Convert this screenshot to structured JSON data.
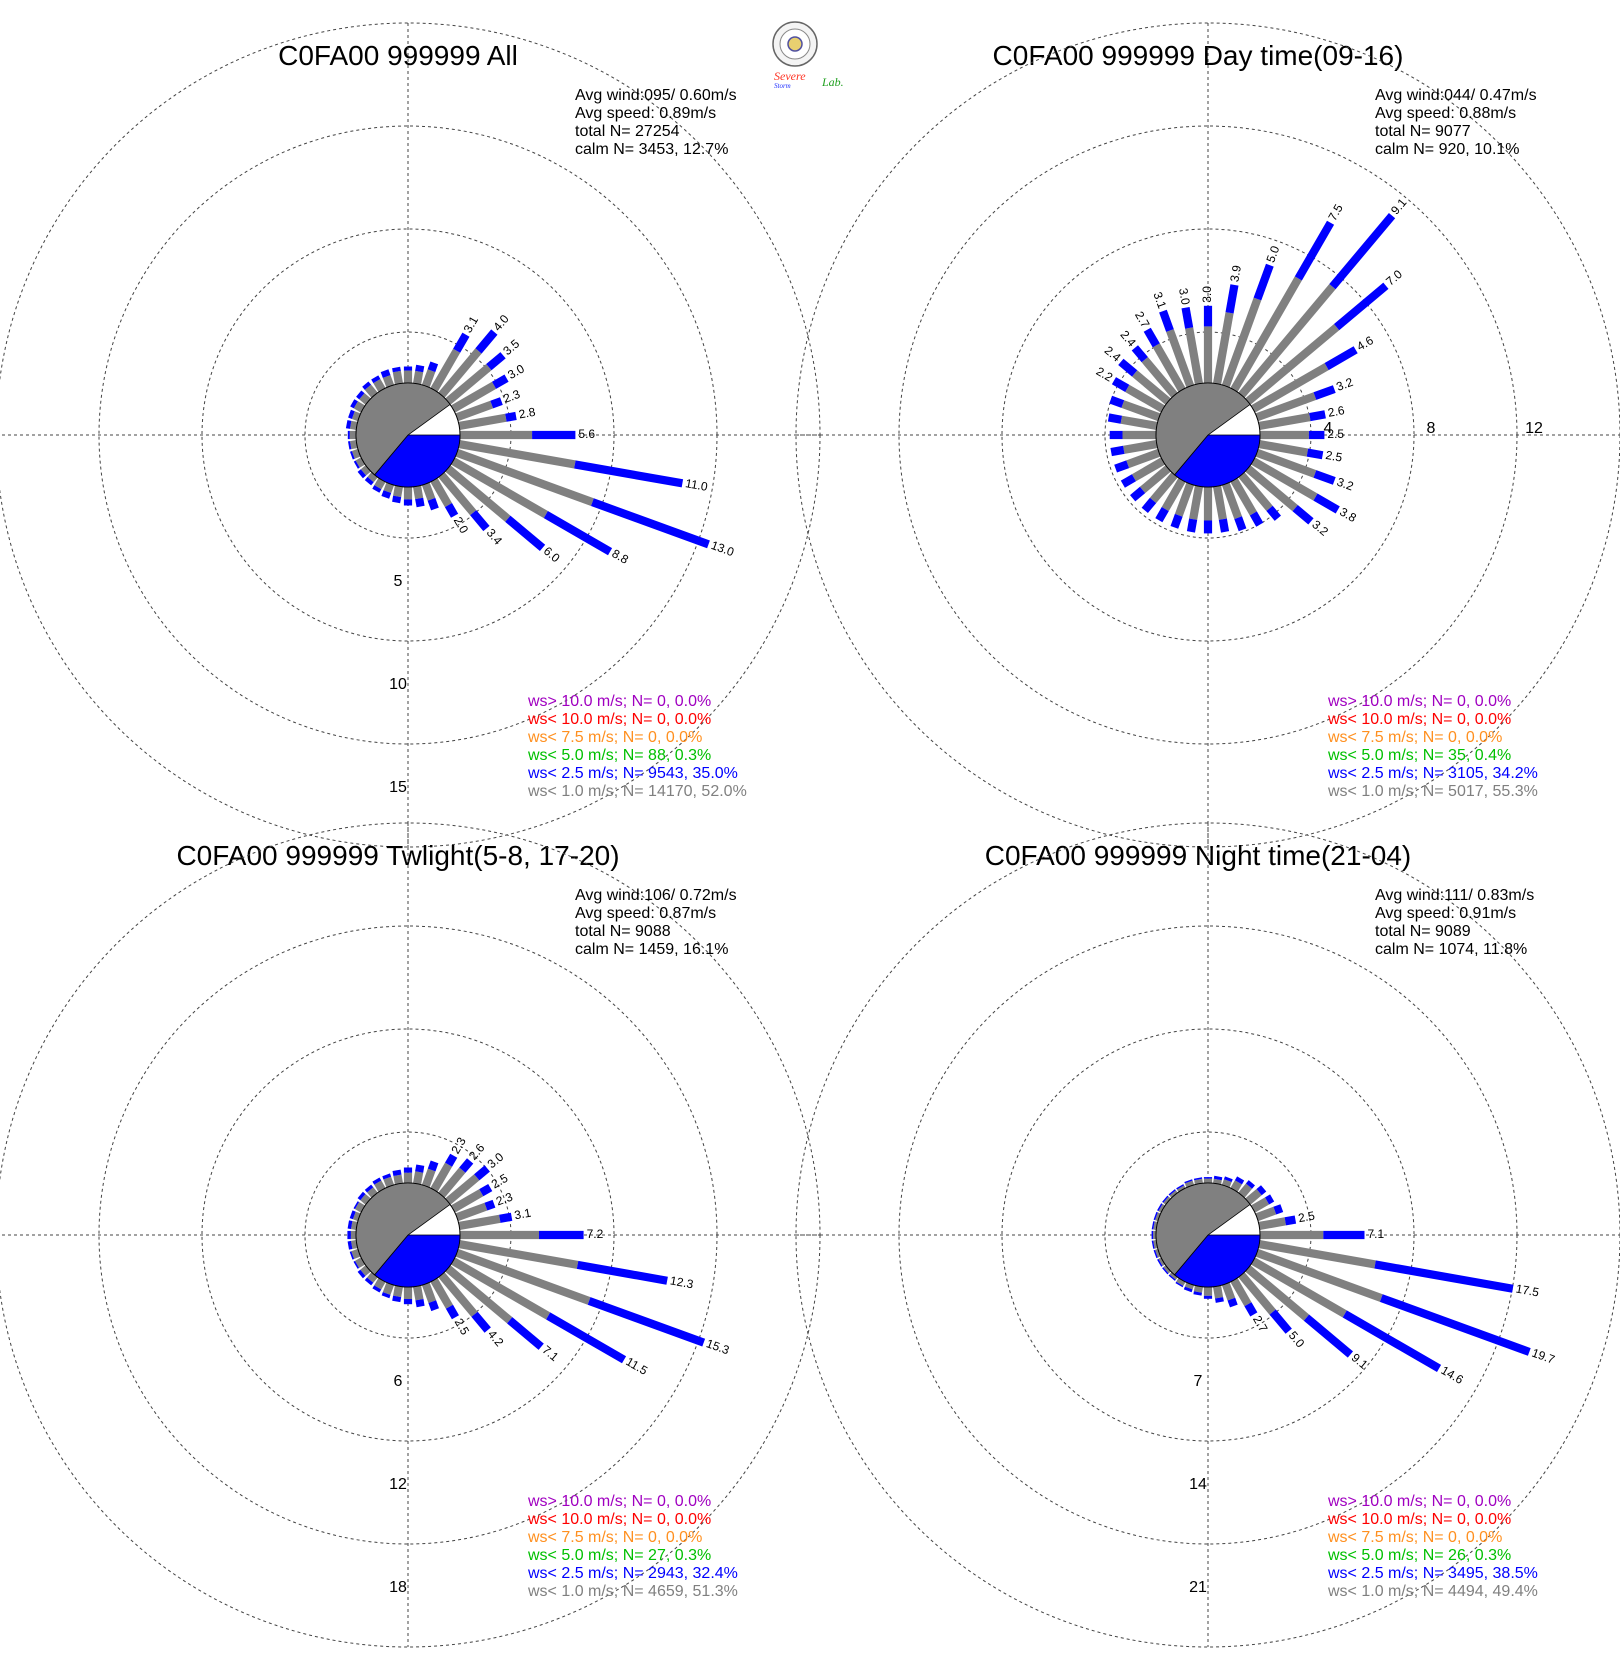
{
  "logo": {
    "line1": "Severe",
    "line2": "Storm",
    "line3": "Lab."
  },
  "colors": {
    "calm": "#808080",
    "lt1": "#808080",
    "lt2_5": "#0000ff",
    "lt5": "#00c000",
    "lt7_5": "#ff9020",
    "lt10": "#ff0000",
    "gt10": "#a000c0"
  },
  "chart_data": [
    {
      "type": "wind-rose",
      "title": "C0FA00 999999 All",
      "stats": {
        "avg_wind": "Avg wind:095/ 0.60m/s",
        "avg_speed": "Avg speed: 0.89m/s",
        "total": "total N=       27254",
        "calm": "calm N=   3453,  12.7%"
      },
      "ring_labels": [
        "5",
        "10",
        "15"
      ],
      "ring_step": 5,
      "petals": [
        {
          "dir": 0,
          "total": 0.8,
          "lt1": 0.6
        },
        {
          "dir": 10,
          "total": 0.9,
          "lt1": 0.6
        },
        {
          "dir": 20,
          "total": 1.2,
          "lt1": 0.8
        },
        {
          "dir": 30,
          "total": 3.1,
          "lt1": 2.2,
          "label": "3.1"
        },
        {
          "dir": 40,
          "total": 4.0,
          "lt1": 2.8,
          "label": "4.0"
        },
        {
          "dir": 50,
          "total": 3.5,
          "lt1": 2.6,
          "label": "3.5"
        },
        {
          "dir": 60,
          "total": 3.0,
          "lt1": 2.3,
          "label": "3.0"
        },
        {
          "dir": 70,
          "total": 2.3,
          "lt1": 1.8,
          "label": "2.3"
        },
        {
          "dir": 80,
          "total": 2.8,
          "lt1": 2.3,
          "label": "2.8"
        },
        {
          "dir": 90,
          "total": 5.6,
          "lt1": 3.5,
          "label": "5.6"
        },
        {
          "dir": 100,
          "total": 11.0,
          "lt1": 5.7,
          "label": "11.0"
        },
        {
          "dir": 110,
          "total": 13.0,
          "lt1": 7.0,
          "label": "13.0"
        },
        {
          "dir": 120,
          "total": 8.8,
          "lt1": 5.2,
          "label": "8.8"
        },
        {
          "dir": 130,
          "total": 6.0,
          "lt1": 3.8,
          "label": "6.0"
        },
        {
          "dir": 140,
          "total": 3.4,
          "lt1": 2.4,
          "label": "3.4"
        },
        {
          "dir": 150,
          "total": 2.0,
          "lt1": 1.4,
          "label": "2.0"
        },
        {
          "dir": 160,
          "total": 1.3,
          "lt1": 0.8
        },
        {
          "dir": 170,
          "total": 1.0,
          "lt1": 0.6
        },
        {
          "dir": 180,
          "total": 0.9,
          "lt1": 0.6
        },
        {
          "dir": 190,
          "total": 0.8,
          "lt1": 0.5
        },
        {
          "dir": 200,
          "total": 0.7,
          "lt1": 0.4
        },
        {
          "dir": 210,
          "total": 0.6,
          "lt1": 0.4
        },
        {
          "dir": 220,
          "total": 0.5,
          "lt1": 0.3
        },
        {
          "dir": 230,
          "total": 0.5,
          "lt1": 0.3
        },
        {
          "dir": 240,
          "total": 0.4,
          "lt1": 0.3
        },
        {
          "dir": 250,
          "total": 0.4,
          "lt1": 0.3
        },
        {
          "dir": 260,
          "total": 0.4,
          "lt1": 0.3
        },
        {
          "dir": 270,
          "total": 0.4,
          "lt1": 0.3
        },
        {
          "dir": 280,
          "total": 0.5,
          "lt1": 0.3
        },
        {
          "dir": 290,
          "total": 0.5,
          "lt1": 0.3
        },
        {
          "dir": 300,
          "total": 0.6,
          "lt1": 0.4
        },
        {
          "dir": 310,
          "total": 0.6,
          "lt1": 0.4
        },
        {
          "dir": 320,
          "total": 0.7,
          "lt1": 0.5
        },
        {
          "dir": 330,
          "total": 0.7,
          "lt1": 0.5
        },
        {
          "dir": 340,
          "total": 0.8,
          "lt1": 0.5
        },
        {
          "dir": 350,
          "total": 0.8,
          "lt1": 0.6
        }
      ],
      "legend": [
        {
          "text": "ws> 10.0 m/s; N=     0,  0.0%",
          "color": "#a000c0"
        },
        {
          "text": "ws< 10.0 m/s; N=     0,  0.0%",
          "color": "#ff0000"
        },
        {
          "text": "ws<  7.5 m/s; N=     0,  0.0%",
          "color": "#ff9020"
        },
        {
          "text": "ws<  5.0 m/s; N=    88,  0.3%",
          "color": "#00c000"
        },
        {
          "text": "ws<  2.5 m/s; N=  9543, 35.0%",
          "color": "#0000ff"
        },
        {
          "text": "ws<  1.0 m/s; N= 14170, 52.0%",
          "color": "#808080"
        }
      ]
    },
    {
      "type": "wind-rose",
      "title": "C0FA00 999999 Day time(09-16)",
      "stats": {
        "avg_wind": "Avg wind:044/ 0.47m/s",
        "avg_speed": "Avg speed: 0.88m/s",
        "total": "total N=        9077",
        "calm": "calm N=    920,  10.1%"
      },
      "ring_labels": [
        "4",
        "8",
        "12"
      ],
      "ring_step": 4,
      "petals": [
        {
          "dir": 0,
          "total": 3.0,
          "lt1": 2.2,
          "label": "3.0"
        },
        {
          "dir": 10,
          "total": 3.9,
          "lt1": 2.8,
          "label": "3.9"
        },
        {
          "dir": 20,
          "total": 5.0,
          "lt1": 3.6,
          "label": "5.0"
        },
        {
          "dir": 30,
          "total": 7.5,
          "lt1": 5.0,
          "label": "7.5"
        },
        {
          "dir": 40,
          "total": 9.1,
          "lt1": 5.5,
          "label": "9.1"
        },
        {
          "dir": 50,
          "total": 7.0,
          "lt1": 4.5,
          "label": "7.0"
        },
        {
          "dir": 60,
          "total": 4.6,
          "lt1": 3.3,
          "label": "4.6"
        },
        {
          "dir": 70,
          "total": 3.2,
          "lt1": 2.4,
          "label": "3.2"
        },
        {
          "dir": 80,
          "total": 2.6,
          "lt1": 2.0,
          "label": "2.6"
        },
        {
          "dir": 90,
          "total": 2.5,
          "lt1": 1.9,
          "label": "2.5"
        },
        {
          "dir": 100,
          "total": 2.5,
          "lt1": 1.9,
          "label": "2.5"
        },
        {
          "dir": 110,
          "total": 3.2,
          "lt1": 2.4,
          "label": "3.2"
        },
        {
          "dir": 120,
          "total": 3.8,
          "lt1": 2.8,
          "label": "3.8"
        },
        {
          "dir": 130,
          "total": 3.2,
          "lt1": 2.4,
          "label": "3.2"
        },
        {
          "dir": 140,
          "total": 2.2,
          "lt1": 1.7
        },
        {
          "dir": 150,
          "total": 2.0,
          "lt1": 1.5
        },
        {
          "dir": 160,
          "total": 1.9,
          "lt1": 1.4
        },
        {
          "dir": 170,
          "total": 1.8,
          "lt1": 1.3
        },
        {
          "dir": 180,
          "total": 1.8,
          "lt1": 1.3
        },
        {
          "dir": 190,
          "total": 1.8,
          "lt1": 1.3
        },
        {
          "dir": 200,
          "total": 1.8,
          "lt1": 1.3
        },
        {
          "dir": 210,
          "total": 1.8,
          "lt1": 1.3
        },
        {
          "dir": 220,
          "total": 1.8,
          "lt1": 1.3
        },
        {
          "dir": 230,
          "total": 1.8,
          "lt1": 1.3
        },
        {
          "dir": 240,
          "total": 1.8,
          "lt1": 1.3
        },
        {
          "dir": 250,
          "total": 1.8,
          "lt1": 1.3
        },
        {
          "dir": 260,
          "total": 1.8,
          "lt1": 1.3
        },
        {
          "dir": 270,
          "total": 1.8,
          "lt1": 1.3
        },
        {
          "dir": 280,
          "total": 1.9,
          "lt1": 1.4
        },
        {
          "dir": 290,
          "total": 2.0,
          "lt1": 1.5
        },
        {
          "dir": 300,
          "total": 2.2,
          "lt1": 1.6,
          "label": "2.2"
        },
        {
          "dir": 310,
          "total": 2.4,
          "lt1": 1.7,
          "label": "2.4"
        },
        {
          "dir": 320,
          "total": 2.4,
          "lt1": 1.8,
          "label": "2.4"
        },
        {
          "dir": 330,
          "total": 2.7,
          "lt1": 2.0,
          "label": "2.7"
        },
        {
          "dir": 340,
          "total": 3.1,
          "lt1": 2.3,
          "label": "3.1"
        },
        {
          "dir": 350,
          "total": 3.0,
          "lt1": 2.2,
          "label": "3.0"
        }
      ],
      "legend": [
        {
          "text": "ws> 10.0 m/s; N=     0,  0.0%",
          "color": "#a000c0"
        },
        {
          "text": "ws< 10.0 m/s; N=     0,  0.0%",
          "color": "#ff0000"
        },
        {
          "text": "ws<  7.5 m/s; N=     0,  0.0%",
          "color": "#ff9020"
        },
        {
          "text": "ws<  5.0 m/s; N=    35,  0.4%",
          "color": "#00c000"
        },
        {
          "text": "ws<  2.5 m/s; N=  3105, 34.2%",
          "color": "#0000ff"
        },
        {
          "text": "ws<  1.0 m/s; N=  5017, 55.3%",
          "color": "#808080"
        }
      ]
    },
    {
      "type": "wind-rose",
      "title": "C0FA00 999999 Twlight(5-8, 17-20)",
      "stats": {
        "avg_wind": "Avg wind:106/ 0.72m/s",
        "avg_speed": "Avg speed: 0.87m/s",
        "total": "total N=        9088",
        "calm": "calm N=   1459,  16.1%"
      },
      "ring_labels": [
        "6",
        "12",
        "18"
      ],
      "ring_step": 6,
      "petals": [
        {
          "dir": 0,
          "total": 0.9,
          "lt1": 0.6
        },
        {
          "dir": 10,
          "total": 1.1,
          "lt1": 0.7
        },
        {
          "dir": 20,
          "total": 1.5,
          "lt1": 1.0
        },
        {
          "dir": 30,
          "total": 2.3,
          "lt1": 1.7,
          "label": "2.3"
        },
        {
          "dir": 40,
          "total": 2.6,
          "lt1": 1.9,
          "label": "2.6"
        },
        {
          "dir": 50,
          "total": 3.0,
          "lt1": 2.2,
          "label": "3.0"
        },
        {
          "dir": 60,
          "total": 2.5,
          "lt1": 1.9,
          "label": "2.5"
        },
        {
          "dir": 70,
          "total": 2.3,
          "lt1": 1.8,
          "label": "2.3"
        },
        {
          "dir": 80,
          "total": 3.1,
          "lt1": 2.4,
          "label": "3.1"
        },
        {
          "dir": 90,
          "total": 7.2,
          "lt1": 4.6,
          "label": "7.2"
        },
        {
          "dir": 100,
          "total": 12.3,
          "lt1": 7.0,
          "label": "12.3"
        },
        {
          "dir": 110,
          "total": 15.3,
          "lt1": 8.2,
          "label": "15.3"
        },
        {
          "dir": 120,
          "total": 11.5,
          "lt1": 6.4,
          "label": "11.5"
        },
        {
          "dir": 130,
          "total": 7.1,
          "lt1": 4.7,
          "label": "7.1"
        },
        {
          "dir": 140,
          "total": 4.2,
          "lt1": 3.0,
          "label": "4.2"
        },
        {
          "dir": 150,
          "total": 2.5,
          "lt1": 1.8,
          "label": "2.5"
        },
        {
          "dir": 160,
          "total": 1.6,
          "lt1": 1.1
        },
        {
          "dir": 170,
          "total": 1.2,
          "lt1": 0.8
        },
        {
          "dir": 180,
          "total": 1.0,
          "lt1": 0.7
        },
        {
          "dir": 190,
          "total": 0.9,
          "lt1": 0.6
        },
        {
          "dir": 200,
          "total": 0.8,
          "lt1": 0.6
        },
        {
          "dir": 210,
          "total": 0.7,
          "lt1": 0.5
        },
        {
          "dir": 220,
          "total": 0.6,
          "lt1": 0.4
        },
        {
          "dir": 230,
          "total": 0.6,
          "lt1": 0.4
        },
        {
          "dir": 240,
          "total": 0.5,
          "lt1": 0.4
        },
        {
          "dir": 250,
          "total": 0.5,
          "lt1": 0.4
        },
        {
          "dir": 260,
          "total": 0.5,
          "lt1": 0.3
        },
        {
          "dir": 270,
          "total": 0.5,
          "lt1": 0.3
        },
        {
          "dir": 280,
          "total": 0.5,
          "lt1": 0.3
        },
        {
          "dir": 290,
          "total": 0.5,
          "lt1": 0.3
        },
        {
          "dir": 300,
          "total": 0.5,
          "lt1": 0.4
        },
        {
          "dir": 310,
          "total": 0.6,
          "lt1": 0.4
        },
        {
          "dir": 320,
          "total": 0.6,
          "lt1": 0.4
        },
        {
          "dir": 330,
          "total": 0.7,
          "lt1": 0.5
        },
        {
          "dir": 340,
          "total": 0.7,
          "lt1": 0.5
        },
        {
          "dir": 350,
          "total": 0.8,
          "lt1": 0.5
        }
      ],
      "legend": [
        {
          "text": "ws> 10.0 m/s; N=     0,  0.0%",
          "color": "#a000c0"
        },
        {
          "text": "ws< 10.0 m/s; N=     0,  0.0%",
          "color": "#ff0000"
        },
        {
          "text": "ws<  7.5 m/s; N=     0,  0.0%",
          "color": "#ff9020"
        },
        {
          "text": "ws<  5.0 m/s; N=    27,  0.3%",
          "color": "#00c000"
        },
        {
          "text": "ws<  2.5 m/s; N=  2943, 32.4%",
          "color": "#0000ff"
        },
        {
          "text": "ws<  1.0 m/s; N=  4659, 51.3%",
          "color": "#808080"
        }
      ]
    },
    {
      "type": "wind-rose",
      "title": "C0FA00 999999 Night time(21-04)",
      "stats": {
        "avg_wind": "Avg wind:111/ 0.83m/s",
        "avg_speed": "Avg speed: 0.91m/s",
        "total": "total N=        9089",
        "calm": "calm N=   1074,  11.8%"
      },
      "ring_labels": [
        "7",
        "14",
        "21"
      ],
      "ring_step": 7,
      "petals": [
        {
          "dir": 0,
          "total": 0.4,
          "lt1": 0.3
        },
        {
          "dir": 10,
          "total": 0.5,
          "lt1": 0.3
        },
        {
          "dir": 20,
          "total": 0.6,
          "lt1": 0.4
        },
        {
          "dir": 30,
          "total": 0.9,
          "lt1": 0.6
        },
        {
          "dir": 40,
          "total": 1.1,
          "lt1": 0.8
        },
        {
          "dir": 50,
          "total": 1.4,
          "lt1": 1.0
        },
        {
          "dir": 60,
          "total": 1.5,
          "lt1": 1.1
        },
        {
          "dir": 70,
          "total": 1.8,
          "lt1": 1.3
        },
        {
          "dir": 80,
          "total": 2.5,
          "lt1": 1.8,
          "label": "2.5"
        },
        {
          "dir": 90,
          "total": 7.1,
          "lt1": 4.3,
          "label": "7.1"
        },
        {
          "dir": 100,
          "total": 17.5,
          "lt1": 8.0,
          "label": "17.5"
        },
        {
          "dir": 110,
          "total": 19.7,
          "lt1": 9.0,
          "label": "19.7"
        },
        {
          "dir": 120,
          "total": 14.6,
          "lt1": 7.2,
          "label": "14.6"
        },
        {
          "dir": 130,
          "total": 9.1,
          "lt1": 5.2,
          "label": "9.1"
        },
        {
          "dir": 140,
          "total": 5.0,
          "lt1": 3.3,
          "label": "5.0"
        },
        {
          "dir": 150,
          "total": 2.7,
          "lt1": 1.9,
          "label": "2.7"
        },
        {
          "dir": 160,
          "total": 1.6,
          "lt1": 1.1
        },
        {
          "dir": 170,
          "total": 1.1,
          "lt1": 0.8
        },
        {
          "dir": 180,
          "total": 0.8,
          "lt1": 0.6
        },
        {
          "dir": 190,
          "total": 0.6,
          "lt1": 0.4
        },
        {
          "dir": 200,
          "total": 0.5,
          "lt1": 0.3
        },
        {
          "dir": 210,
          "total": 0.4,
          "lt1": 0.3
        },
        {
          "dir": 220,
          "total": 0.3,
          "lt1": 0.2
        },
        {
          "dir": 230,
          "total": 0.3,
          "lt1": 0.2
        },
        {
          "dir": 240,
          "total": 0.3,
          "lt1": 0.2
        },
        {
          "dir": 250,
          "total": 0.3,
          "lt1": 0.2
        },
        {
          "dir": 260,
          "total": 0.3,
          "lt1": 0.2
        },
        {
          "dir": 270,
          "total": 0.3,
          "lt1": 0.2
        },
        {
          "dir": 280,
          "total": 0.3,
          "lt1": 0.2
        },
        {
          "dir": 290,
          "total": 0.3,
          "lt1": 0.2
        },
        {
          "dir": 300,
          "total": 0.3,
          "lt1": 0.2
        },
        {
          "dir": 310,
          "total": 0.3,
          "lt1": 0.2
        },
        {
          "dir": 320,
          "total": 0.3,
          "lt1": 0.2
        },
        {
          "dir": 330,
          "total": 0.3,
          "lt1": 0.2
        },
        {
          "dir": 340,
          "total": 0.4,
          "lt1": 0.3
        },
        {
          "dir": 350,
          "total": 0.4,
          "lt1": 0.3
        }
      ],
      "legend": [
        {
          "text": "ws> 10.0 m/s; N=     0,  0.0%",
          "color": "#a000c0"
        },
        {
          "text": "ws< 10.0 m/s; N=     0,  0.0%",
          "color": "#ff0000"
        },
        {
          "text": "ws<  7.5 m/s; N=     0,  0.0%",
          "color": "#ff9020"
        },
        {
          "text": "ws<  5.0 m/s; N=    26,  0.3%",
          "color": "#00c000"
        },
        {
          "text": "ws<  2.5 m/s; N=  3495, 38.5%",
          "color": "#0000ff"
        },
        {
          "text": "ws<  1.0 m/s; N=  4494, 49.4%",
          "color": "#808080"
        }
      ]
    }
  ]
}
